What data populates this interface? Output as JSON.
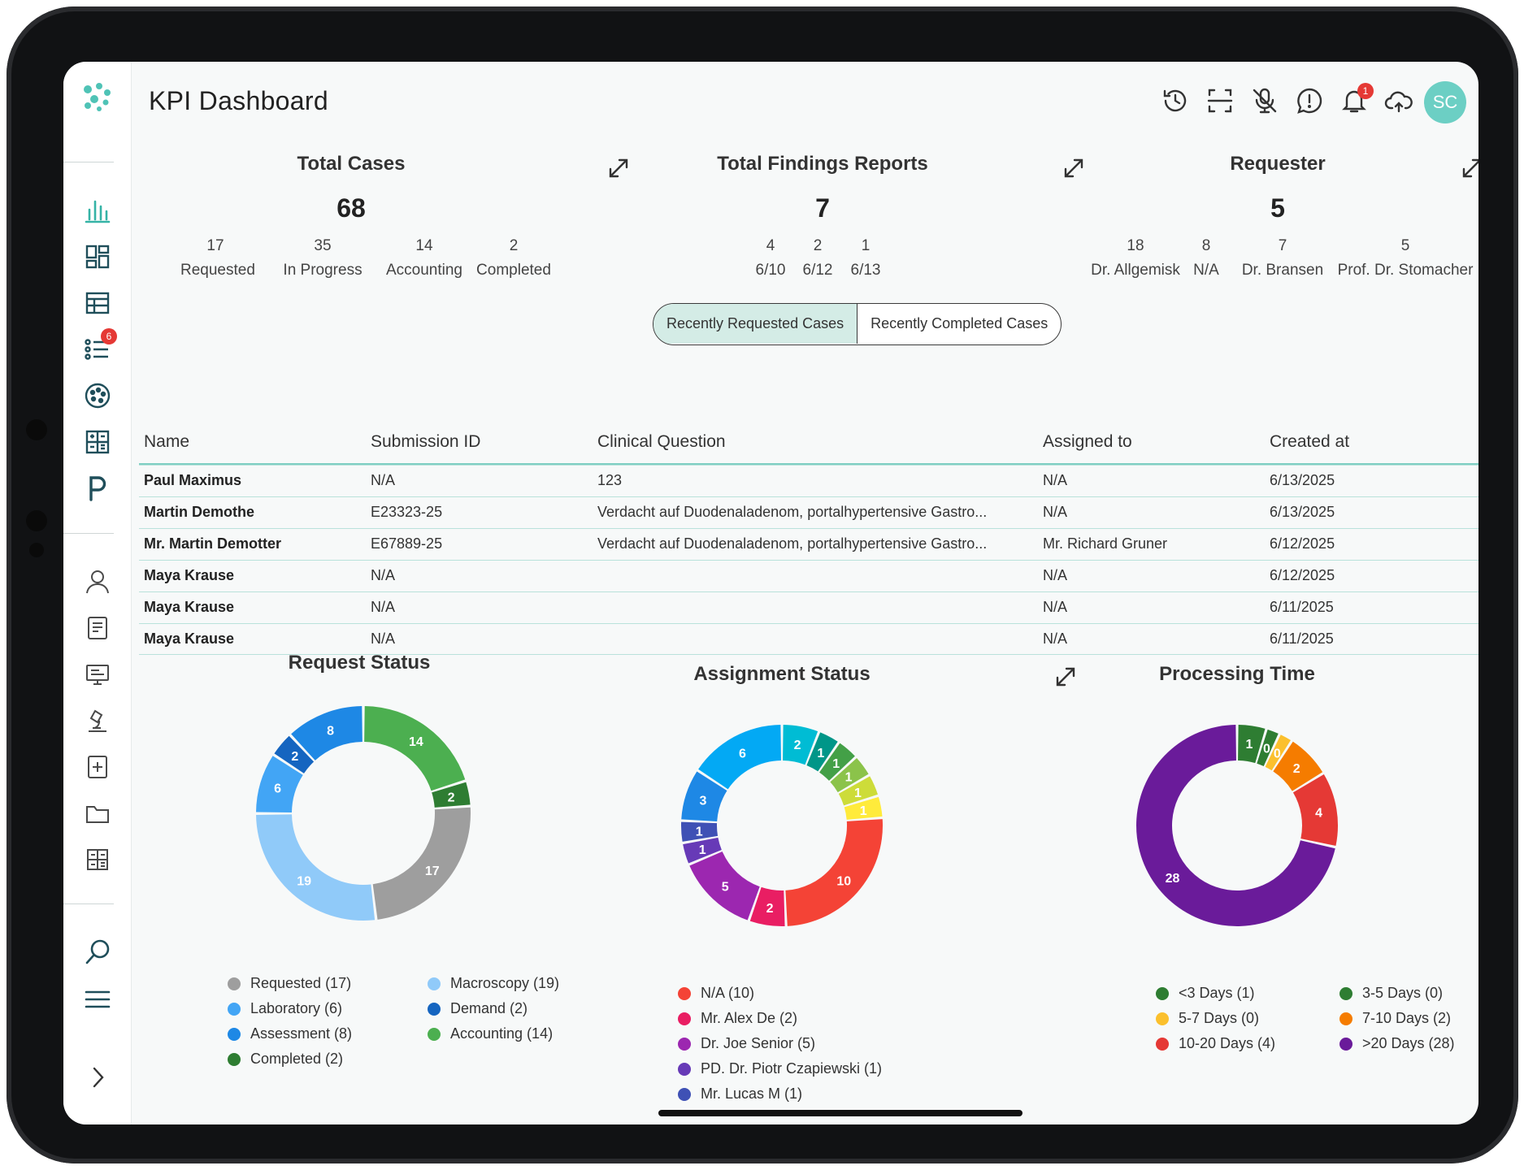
{
  "header": {
    "title": "KPI Dashboard",
    "avatar": "SC",
    "notification_count": "1"
  },
  "sidebar": {
    "list_badge": "6"
  },
  "kpi_total_cases": {
    "title": "Total Cases",
    "total": "68",
    "items": [
      {
        "value": "17",
        "label": "Requested"
      },
      {
        "value": "35",
        "label": "In Progress"
      },
      {
        "value": "14",
        "label": "Accounting"
      },
      {
        "value": "2",
        "label": "Completed"
      }
    ]
  },
  "kpi_findings": {
    "title": "Total Findings Reports",
    "total": "7",
    "items": [
      {
        "value": "4",
        "label": "6/10"
      },
      {
        "value": "2",
        "label": "6/12"
      },
      {
        "value": "1",
        "label": "6/13"
      }
    ]
  },
  "kpi_requester": {
    "title": "Requester",
    "total": "5",
    "items": [
      {
        "value": "18",
        "label": "Dr. Allgemisk"
      },
      {
        "value": "8",
        "label": "N/A"
      },
      {
        "value": "7",
        "label": "Dr. Bransen"
      },
      {
        "value": "5",
        "label": "Prof. Dr. Stomacher"
      }
    ]
  },
  "toggle": {
    "active": "Recently Requested Cases",
    "inactive": "Recently Completed Cases"
  },
  "table": {
    "headers": [
      "Name",
      "Submission ID",
      "Clinical Question",
      "Assigned to",
      "Created at"
    ],
    "rows": [
      [
        "Paul Maximus",
        "N/A",
        "123",
        "N/A",
        "6/13/2025"
      ],
      [
        "Martin Demothe",
        "E23323-25",
        "Verdacht auf Duodenaladenom, portalhypertensive Gastro...",
        "N/A",
        "6/13/2025"
      ],
      [
        "Mr. Martin Demotter",
        "E67889-25",
        "Verdacht auf Duodenaladenom, portalhypertensive Gastro...",
        "Mr. Richard Gruner",
        "6/12/2025"
      ],
      [
        "Maya Krause",
        "N/A",
        "",
        "N/A",
        "6/12/2025"
      ],
      [
        "Maya Krause",
        "N/A",
        "",
        "N/A",
        "6/11/2025"
      ],
      [
        "Maya Krause",
        "N/A",
        "",
        "N/A",
        "6/11/2025"
      ]
    ]
  },
  "chart_data": [
    {
      "type": "pie",
      "title": "Request Status",
      "slices": [
        {
          "label": "Accounting",
          "value": 14,
          "color": "#4caf50"
        },
        {
          "label": "Completed",
          "value": 2,
          "color": "#2e7d32"
        },
        {
          "label": "Requested",
          "value": 17,
          "color": "#9e9e9e"
        },
        {
          "label": "Macroscopy",
          "value": 19,
          "color": "#90caf9"
        },
        {
          "label": "Laboratory",
          "value": 6,
          "color": "#42a5f5"
        },
        {
          "label": "Demand",
          "value": 2,
          "color": "#1565c0"
        },
        {
          "label": "Assessment",
          "value": 8,
          "color": "#1e88e5"
        }
      ],
      "legend": [
        {
          "text": "Requested (17)",
          "color": "#9e9e9e"
        },
        {
          "text": "Macroscopy (19)",
          "color": "#90caf9"
        },
        {
          "text": "Laboratory (6)",
          "color": "#42a5f5"
        },
        {
          "text": "Demand (2)",
          "color": "#1565c0"
        },
        {
          "text": "Assessment (8)",
          "color": "#1e88e5"
        },
        {
          "text": "Accounting (14)",
          "color": "#4caf50"
        },
        {
          "text": "Completed (2)",
          "color": "#2e7d32"
        }
      ]
    },
    {
      "type": "pie",
      "title": "Assignment Status",
      "slices": [
        {
          "label": "",
          "value": 2,
          "color": "#00bcd4"
        },
        {
          "label": "",
          "value": 1,
          "color": "#009688"
        },
        {
          "label": "",
          "value": 1,
          "color": "#43a047"
        },
        {
          "label": "",
          "value": 1,
          "color": "#8bc34a"
        },
        {
          "label": "",
          "value": 1,
          "color": "#cddc39"
        },
        {
          "label": "",
          "value": 1,
          "color": "#ffeb3b"
        },
        {
          "label": "N/A",
          "value": 10,
          "color": "#f44336"
        },
        {
          "label": "Mr. Alex De",
          "value": 2,
          "color": "#e91e63"
        },
        {
          "label": "Dr. Joe Senior",
          "value": 5,
          "color": "#9c27b0"
        },
        {
          "label": "PD. Dr. Piotr Czapiewski",
          "value": 1,
          "color": "#673ab7"
        },
        {
          "label": "Mr. Lucas M",
          "value": 1,
          "color": "#3f51b5"
        },
        {
          "label": "",
          "value": 3,
          "color": "#1e88e5"
        },
        {
          "label": "",
          "value": 6,
          "color": "#03a9f4"
        }
      ],
      "legend": [
        {
          "text": "N/A (10)",
          "color": "#f44336"
        },
        {
          "text": "Mr. Alex De (2)",
          "color": "#e91e63"
        },
        {
          "text": "Dr. Joe Senior (5)",
          "color": "#9c27b0"
        },
        {
          "text": "PD. Dr. Piotr Czapiewski (1)",
          "color": "#673ab7"
        },
        {
          "text": "Mr. Lucas M (1)",
          "color": "#3f51b5"
        }
      ]
    },
    {
      "type": "pie",
      "title": "Processing Time",
      "slices": [
        {
          "label": "<3 Days",
          "value": 1,
          "color": "#2e7d32"
        },
        {
          "label": "3-5 Days",
          "value": 0,
          "color": "#2e7d32"
        },
        {
          "label": "5-7 Days",
          "value": 0,
          "color": "#fbc02d"
        },
        {
          "label": "7-10 Days",
          "value": 2,
          "color": "#f57c00"
        },
        {
          "label": "10-20 Days",
          "value": 4,
          "color": "#e53935"
        },
        {
          "label": ">20 Days",
          "value": 28,
          "color": "#6a1b9a"
        }
      ],
      "legend": [
        {
          "text": "<3 Days (1)",
          "color": "#2e7d32"
        },
        {
          "text": "3-5 Days (0)",
          "color": "#2e7d32"
        },
        {
          "text": "5-7 Days (0)",
          "color": "#fbc02d"
        },
        {
          "text": "7-10 Days (2)",
          "color": "#f57c00"
        },
        {
          "text": "10-20 Days (4)",
          "color": "#e53935"
        },
        {
          "text": ">20 Days (28)",
          "color": "#6a1b9a"
        }
      ]
    }
  ]
}
